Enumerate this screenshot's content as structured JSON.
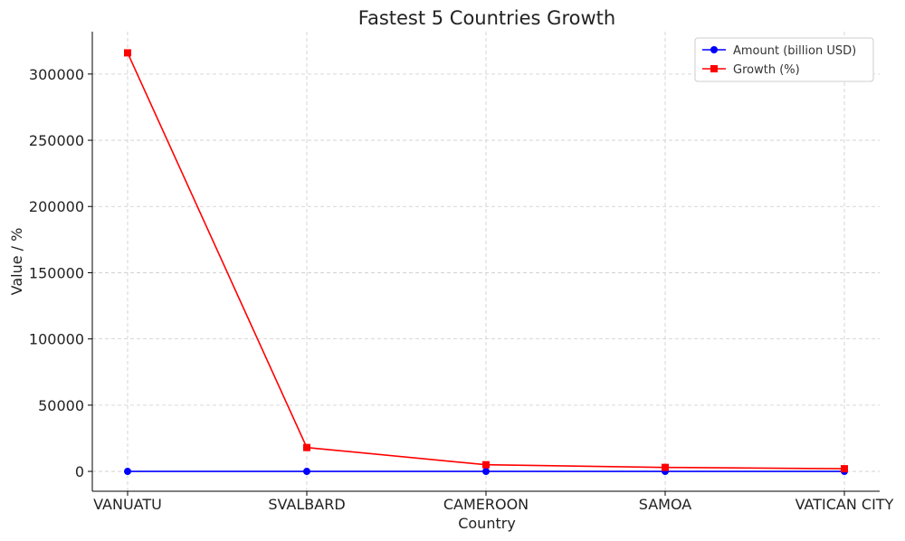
{
  "chart_data": {
    "type": "line",
    "title": "Fastest 5 Countries Growth",
    "xlabel": "Country",
    "ylabel": "Value / %",
    "categories": [
      "VANUATU",
      "SVALBARD",
      "CAMEROON",
      "SAMOA",
      "VATICAN CITY"
    ],
    "series": [
      {
        "name": "Amount (billion USD)",
        "color": "#0000ff",
        "marker": "circle",
        "values": [
          0.1,
          0.1,
          0.2,
          0.1,
          0.1
        ]
      },
      {
        "name": "Growth (%)",
        "color": "#ff0000",
        "marker": "square",
        "values": [
          316000,
          18000,
          5000,
          3000,
          2000
        ]
      }
    ],
    "ylim": [
      -15000,
      332000
    ],
    "yticks": [
      0,
      50000,
      100000,
      150000,
      200000,
      250000,
      300000
    ],
    "grid": true,
    "legend_position": "top-right"
  }
}
